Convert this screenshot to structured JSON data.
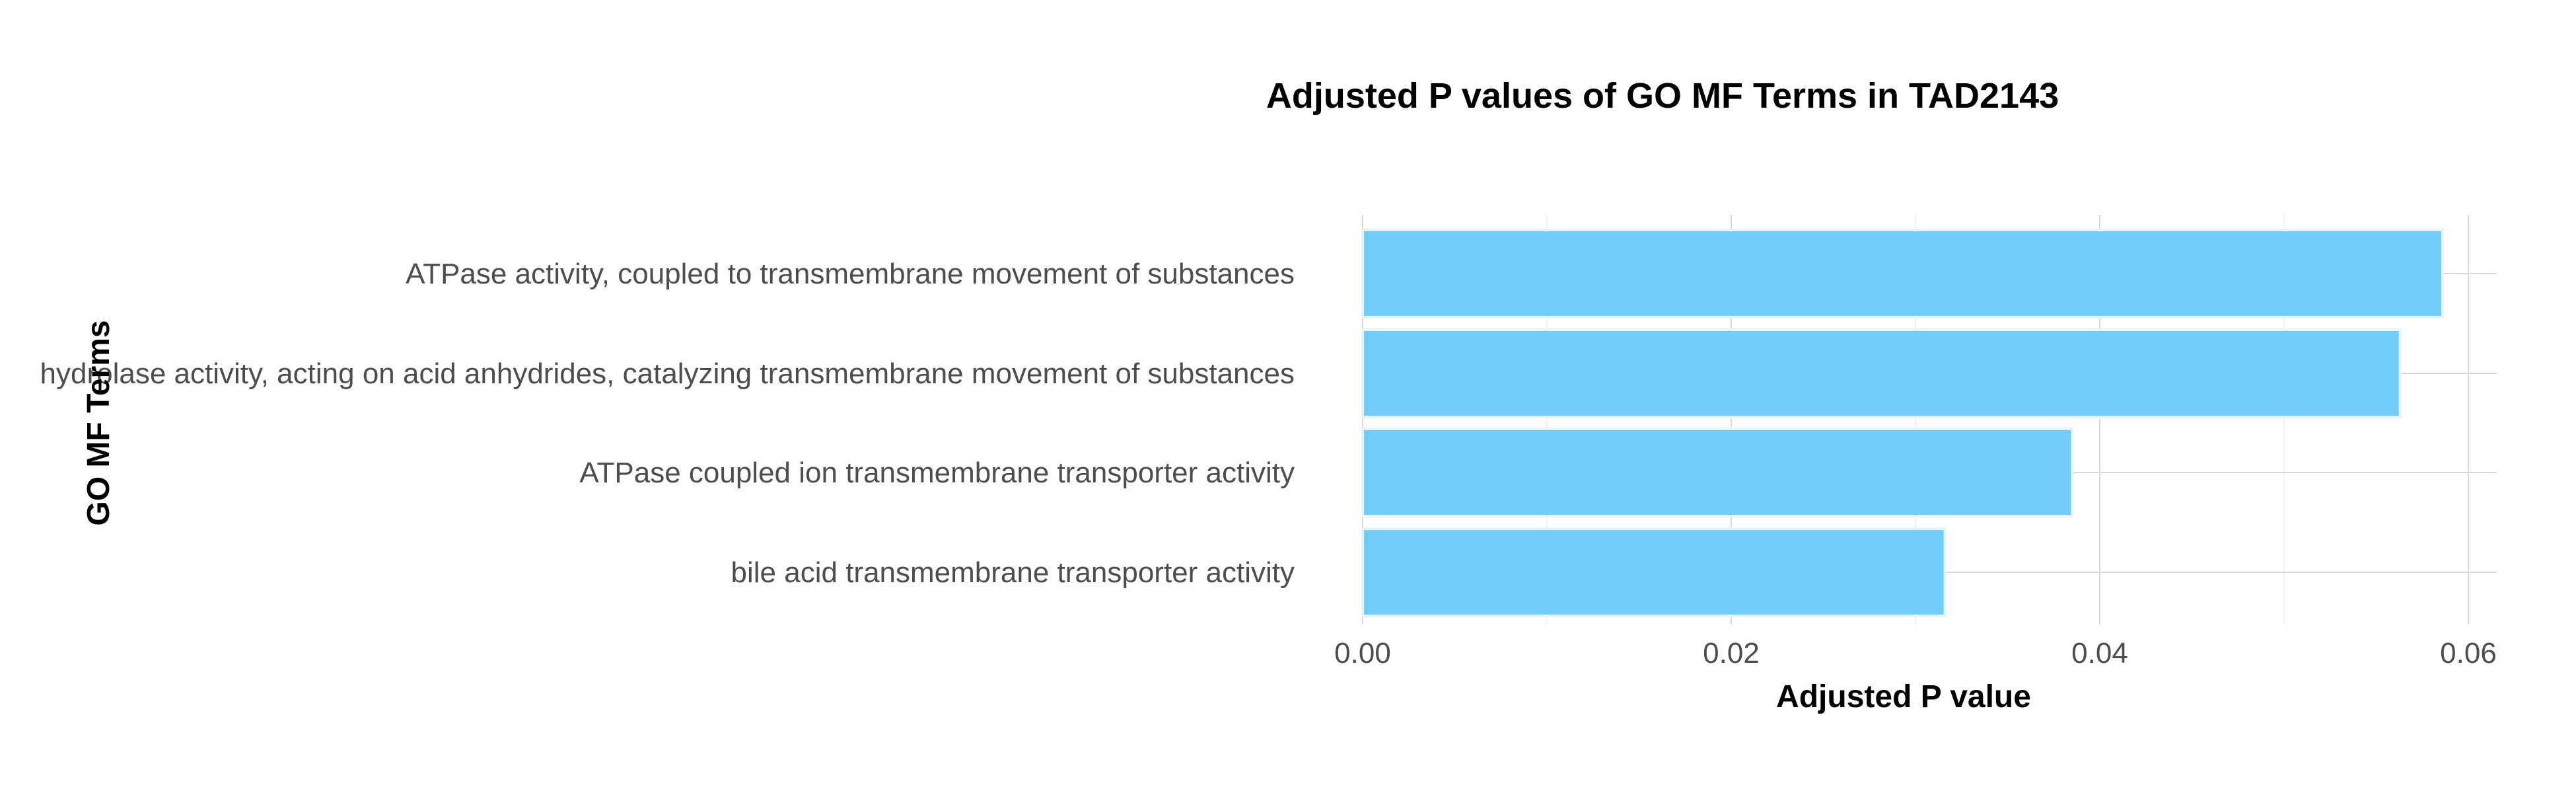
{
  "chart_data": {
    "type": "bar",
    "orientation": "horizontal",
    "title": "Adjusted P values of GO MF Terms in TAD2143",
    "xlabel": "Adjusted P value",
    "ylabel": "GO MF Terms",
    "categories": [
      "ATPase activity, coupled to transmembrane movement of substances",
      "hydrolase activity, acting on acid anhydrides, catalyzing transmembrane movement of substances",
      "ATPase coupled ion transmembrane transporter activity",
      "bile acid transmembrane transporter activity"
    ],
    "values": [
      0.0586,
      0.0563,
      0.0385,
      0.0316
    ],
    "xlim": [
      0,
      0.0615
    ],
    "xticks": [
      0,
      0.02,
      0.04,
      0.06
    ],
    "xtick_labels": [
      "0.00",
      "0.02",
      "0.04",
      "0.06"
    ],
    "grid": true,
    "legend": "none",
    "bar_color": "#72cdfb"
  }
}
